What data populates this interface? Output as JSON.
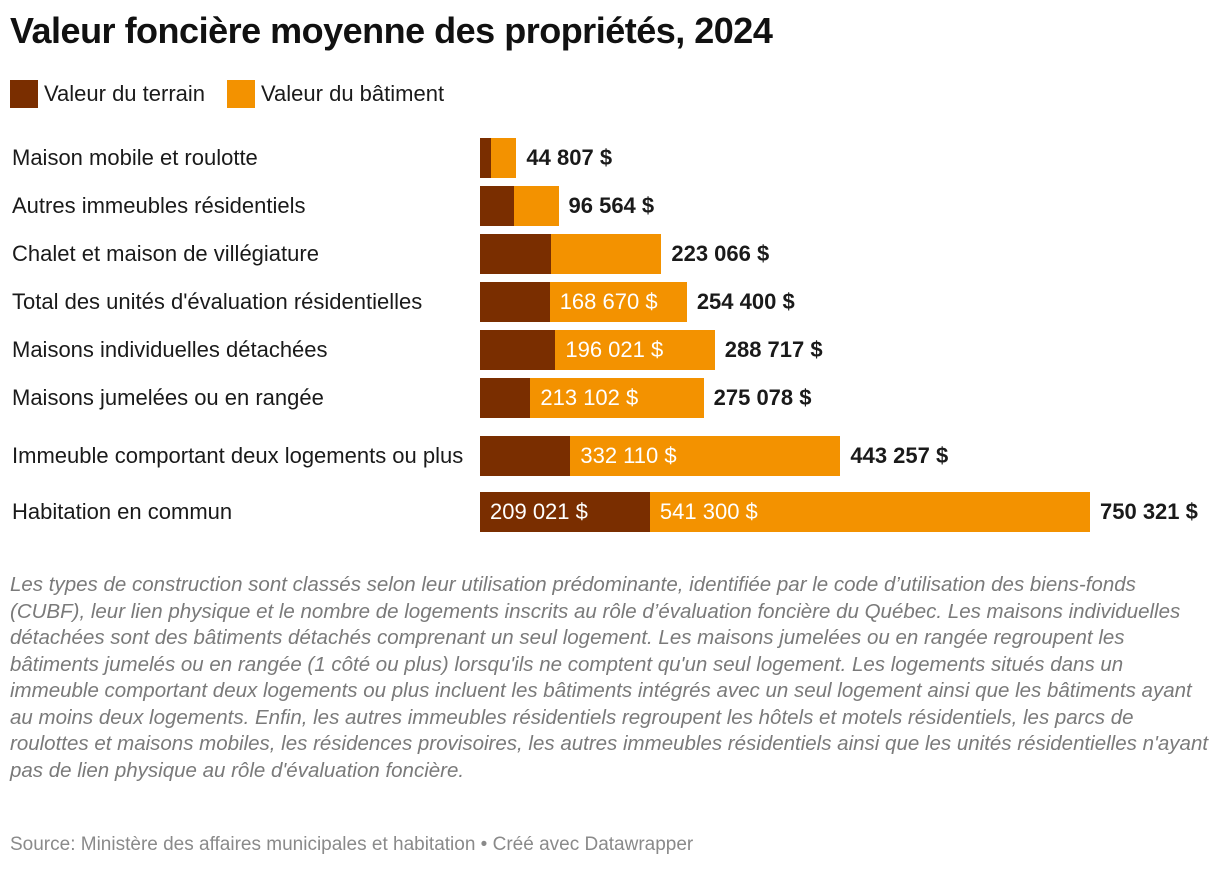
{
  "title": "Valeur foncière moyenne des propriétés, 2024",
  "colors": {
    "terrain": "#7a2e00",
    "batiment": "#f39200"
  },
  "legend": [
    {
      "key": "terrain",
      "label": "Valeur du terrain"
    },
    {
      "key": "batiment",
      "label": "Valeur du bâtiment"
    }
  ],
  "chart_data": {
    "type": "bar",
    "orientation": "horizontal",
    "stacked": true,
    "categories": [
      "Maison mobile et roulotte",
      "Autres immeubles résidentiels",
      "Chalet et maison de villégiature",
      "Total des unités d'évaluation résidentielles",
      "Maisons individuelles détachées",
      "Maisons jumelées ou en rangée",
      "Immeuble comportant deux logements ou plus",
      "Habitation en commun"
    ],
    "series": [
      {
        "name": "Valeur du terrain",
        "values": [
          13000,
          42000,
          87000,
          85730,
          92696,
          61976,
          111147,
          209021
        ]
      },
      {
        "name": "Valeur du bâtiment",
        "values": [
          31807,
          54564,
          136066,
          168670,
          196021,
          213102,
          332110,
          541300
        ]
      }
    ],
    "totals": [
      44807,
      96564,
      223066,
      254400,
      288717,
      275078,
      443257,
      750321
    ],
    "totals_labels": [
      "44 807 $",
      "96 564 $",
      "223 066 $",
      "254 400 $",
      "288 717 $",
      "275 078 $",
      "443 257 $",
      "750 321 $"
    ],
    "segment_labels": {
      "terrain": [
        "",
        "",
        "",
        "",
        "",
        "",
        "",
        "209 021 $"
      ],
      "batiment": [
        "",
        "",
        "",
        "168 670 $",
        "196 021 $",
        "213 102 $",
        "332 110 $",
        "541 300 $"
      ]
    },
    "xlim": [
      0,
      750321
    ],
    "grid": false,
    "legend_position": "top-left"
  },
  "notes": "Les types de construction sont classés selon leur utilisation prédominante, identifiée par le code d’utilisation des biens-fonds (CUBF), leur lien physique et le nombre de logements inscrits au rôle d’évaluation foncière du Québec. Les maisons individuelles détachées sont des bâtiments détachés comprenant un seul logement. Les maisons jumelées ou en rangée regroupent les bâtiments jumelés ou en rangée (1 côté ou plus) lorsqu'ils ne comptent qu'un seul logement. Les logements situés dans un immeuble comportant deux logements ou plus incluent les bâtiments intégrés avec un seul logement ainsi que les bâtiments ayant au moins deux logements. Enfin, les autres immeubles résidentiels regroupent les hôtels et motels résidentiels, les parcs de roulottes et maisons mobiles, les résidences provisoires, les autres immeubles résidentiels ainsi que les unités résidentielles n'ayant pas de lien physique au rôle d'évaluation foncière.",
  "source": "Source: Ministère des affaires municipales et habitation • Créé avec Datawrapper"
}
